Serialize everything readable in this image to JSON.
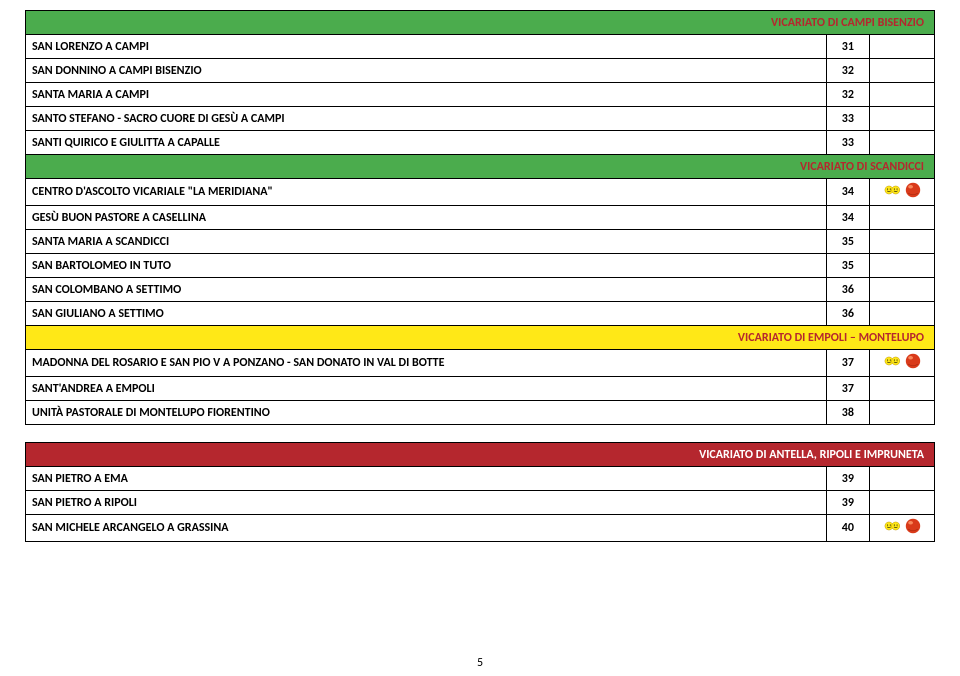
{
  "page_number": "5",
  "sections": [
    {
      "header": {
        "label": "VICARIATO DI CAMPI BISENZIO",
        "color_bg": "#4bac4d",
        "color_fg": "#b5272e"
      },
      "rows": [
        {
          "name": "SAN LORENZO A CAMPI",
          "num": "31",
          "icons": false
        },
        {
          "name": "SAN DONNINO A CAMPI BISENZIO",
          "num": "32",
          "icons": false
        },
        {
          "name": "SANTA MARIA A CAMPI",
          "num": "32",
          "icons": false
        },
        {
          "name": "SANTO STEFANO - SACRO CUORE DI GESÙ A CAMPI",
          "num": "33",
          "icons": false
        },
        {
          "name": "SANTI QUIRICO E GIULITTA A CAPALLE",
          "num": "33",
          "icons": false
        }
      ]
    },
    {
      "header": {
        "label": "VICARIATO DI SCANDICCI",
        "color_bg": "#4bac4d",
        "color_fg": "#b5272e"
      },
      "rows": [
        {
          "name": "CENTRO D'ASCOLTO VICARIALE \"LA MERIDIANA\"",
          "num": "34",
          "icons": true
        },
        {
          "name": "GESÙ BUON PASTORE A CASELLINA",
          "num": "34",
          "icons": false
        },
        {
          "name": "SANTA MARIA A SCANDICCI",
          "num": "35",
          "icons": false
        },
        {
          "name": "SAN BARTOLOMEO IN TUTO",
          "num": "35",
          "icons": false
        },
        {
          "name": "SAN COLOMBANO A SETTIMO",
          "num": "36",
          "icons": false
        },
        {
          "name": "SAN GIULIANO A SETTIMO",
          "num": "36",
          "icons": false
        }
      ]
    },
    {
      "header": {
        "label": "VICARIATO DI EMPOLI – MONTELUPO",
        "color_bg": "#ffe817",
        "color_fg": "#b5272e"
      },
      "rows": [
        {
          "name": "MADONNA DEL ROSARIO E SAN PIO V A PONZANO - SAN DONATO IN VAL DI BOTTE",
          "num": "37",
          "icons": true
        },
        {
          "name": "SANT'ANDREA A EMPOLI",
          "num": "37",
          "icons": false
        },
        {
          "name": "UNITÀ PASTORALE DI MONTELUPO FIORENTINO",
          "num": "38",
          "icons": false
        }
      ]
    },
    {
      "header": {
        "label": "VICARIATO DI ANTELLA, RIPOLI E IMPRUNETA",
        "color_bg": "#b5272e",
        "color_fg": "#ffffff"
      },
      "rows": [
        {
          "name": "SAN PIETRO A EMA",
          "num": "39",
          "icons": false
        },
        {
          "name": "SAN PIETRO A RIPOLI",
          "num": "39",
          "icons": false
        },
        {
          "name": "SAN MICHELE ARCANGELO A GRASSINA",
          "num": "40",
          "icons": true
        }
      ]
    }
  ],
  "icon_smiley_fill": "#ffe817",
  "icon_smiley_stroke": "#b58a00",
  "icon_ball_fill": "#d93a1a",
  "icon_ball_shine": "#ff9a6a"
}
